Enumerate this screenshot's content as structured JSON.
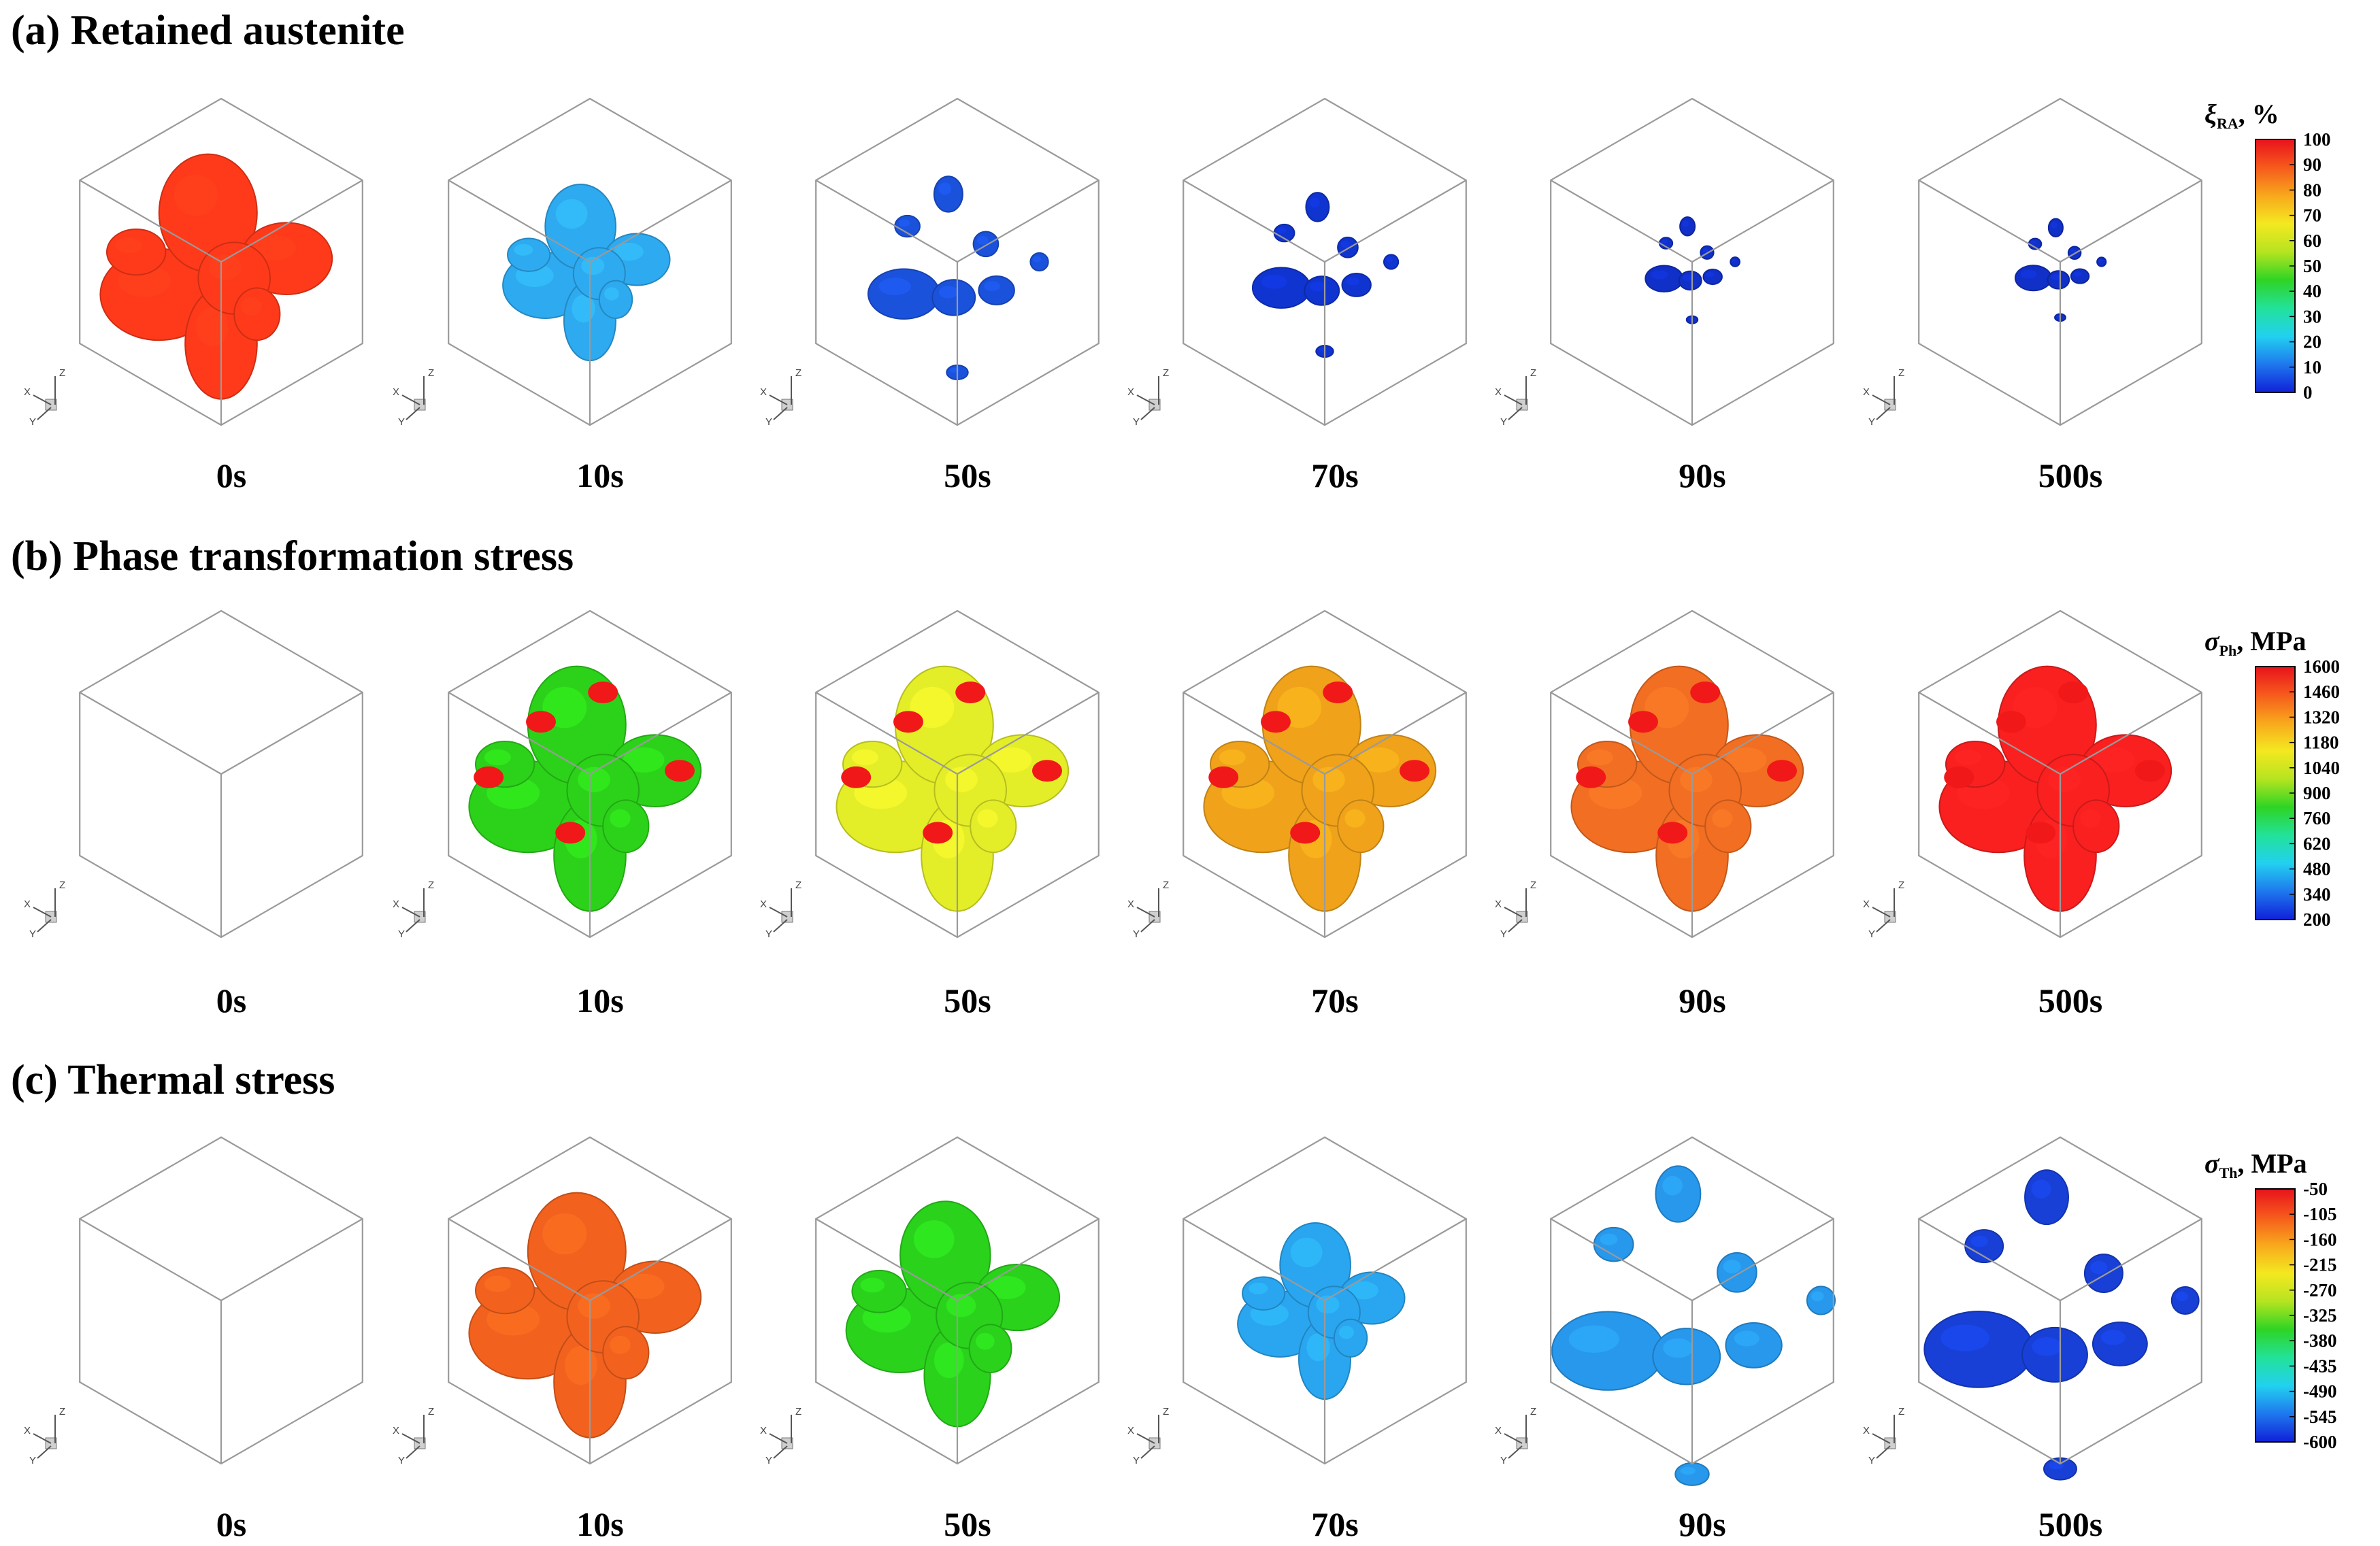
{
  "rows": [
    {
      "title": "(a) Retained austenite",
      "times": [
        "0s",
        "10s",
        "50s",
        "70s",
        "90s",
        "500s"
      ],
      "region_colors": [
        "#ff3a1a",
        "#2eaaf0",
        "#1b52dc",
        "#1034cf",
        "#1030c8",
        "#1030c8"
      ],
      "region_sizes": [
        1.0,
        0.72,
        0.42,
        0.34,
        0.22,
        0.18
      ],
      "colorbar": {
        "symbol": "ξ",
        "subscript": "RA",
        "unit": ", %",
        "ticks": [
          "100",
          "90",
          "80",
          "70",
          "60",
          "50",
          "40",
          "30",
          "20",
          "10",
          "0"
        ]
      }
    },
    {
      "title": "(b) Phase transformation stress",
      "times": [
        "0s",
        "10s",
        "50s",
        "70s",
        "90s",
        "500s"
      ],
      "region_colors": [
        null,
        "#2cd21a",
        "#e4ee28",
        "#f0a21a",
        "#f26e22",
        "#fa2020"
      ],
      "region_sizes": [
        0,
        1.0,
        1.0,
        1.0,
        1.0,
        1.0
      ],
      "colorbar": {
        "symbol": "σ",
        "subscript": "Ph",
        "unit": ", MPa",
        "ticks": [
          "1600",
          "1460",
          "1320",
          "1180",
          "1040",
          "900",
          "760",
          "620",
          "480",
          "340",
          "200"
        ]
      }
    },
    {
      "title": "(c) Thermal stress",
      "times": [
        "0s",
        "10s",
        "50s",
        "70s",
        "90s",
        "500s"
      ],
      "region_colors": [
        null,
        "#f2621e",
        "#2ad21c",
        "#2aa6f0",
        "#2898ec",
        "#1840d6"
      ],
      "region_sizes": [
        0,
        1.0,
        0.92,
        0.72,
        0.66,
        0.64
      ],
      "colorbar": {
        "symbol": "σ",
        "subscript": "Th",
        "unit": ", MPa",
        "ticks": [
          "-50",
          "-105",
          "-160",
          "-215",
          "-270",
          "-325",
          "-380",
          "-435",
          "-490",
          "-545",
          "-600"
        ]
      }
    }
  ],
  "triad": {
    "x": "X",
    "y": "Y",
    "z": "Z"
  },
  "colormap": [
    "#1020d8",
    "#1e78ee",
    "#22d0f0",
    "#22e29a",
    "#2ed424",
    "#b6e420",
    "#f4e820",
    "#f8a81c",
    "#f65a1c",
    "#e8121c"
  ]
}
